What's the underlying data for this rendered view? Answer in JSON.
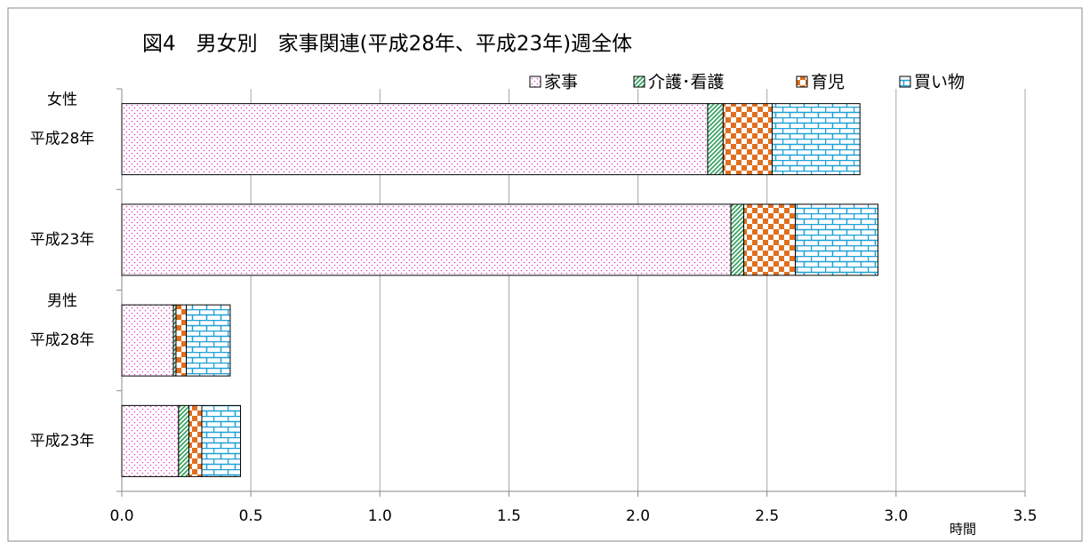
{
  "chart_data": {
    "type": "stacked-barh",
    "title": "図4　男女別　家事関連(平成28年、平成23年)週全体",
    "x_label": "時間",
    "groups": [
      {
        "label": "女性",
        "start": 0
      },
      {
        "label": "男性",
        "start": 2
      }
    ],
    "categories": [
      "平成28年",
      "平成23年",
      "平成28年",
      "平成23年"
    ],
    "series": [
      {
        "name": "家事",
        "color": "#e040c0",
        "pattern": "dots",
        "values": [
          2.27,
          2.36,
          0.2,
          0.22
        ]
      },
      {
        "name": "介護･看護",
        "color": "#2e9e5a",
        "pattern": "diagonal",
        "values": [
          0.06,
          0.05,
          0.01,
          0.04
        ]
      },
      {
        "name": "育児",
        "color": "#e07020",
        "pattern": "checker",
        "values": [
          0.19,
          0.2,
          0.04,
          0.05
        ]
      },
      {
        "name": "買い物",
        "color": "#1ea0d8",
        "pattern": "brick",
        "values": [
          0.34,
          0.32,
          0.17,
          0.15
        ]
      }
    ],
    "xlim": [
      0,
      3.5
    ],
    "xticks": [
      {
        "value": 0,
        "label": "0.0"
      },
      0.5,
      {
        "value": 1,
        "label": "1.0"
      },
      1.5,
      {
        "value": 2,
        "label": "2.0"
      },
      2.5,
      {
        "value": 3,
        "label": "3.0"
      },
      3.5
    ],
    "grid": true,
    "legend": "top-right"
  }
}
